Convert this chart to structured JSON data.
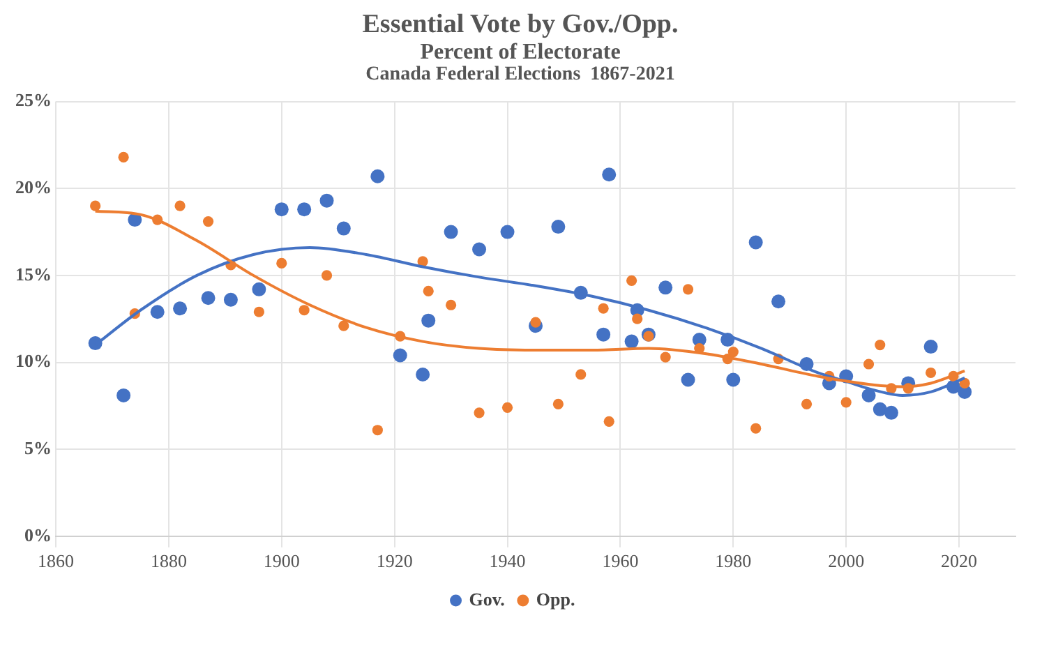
{
  "chart_data": {
    "type": "scatter",
    "title": "Essential Vote by Gov./Opp.",
    "subtitle": "Percent of Electorate",
    "annotations": [
      "Canada Federal Elections  1867-2021"
    ],
    "x": [
      1867,
      1872,
      1874,
      1878,
      1882,
      1887,
      1891,
      1896,
      1900,
      1904,
      1908,
      1911,
      1917,
      1921,
      1925,
      1926,
      1930,
      1935,
      1940,
      1945,
      1949,
      1953,
      1957,
      1958,
      1962,
      1963,
      1965,
      1968,
      1972,
      1974,
      1979,
      1980,
      1984,
      1988,
      1993,
      1997,
      2000,
      2004,
      2006,
      2008,
      2011,
      2015,
      2019,
      2021
    ],
    "series": [
      {
        "name": "Gov.",
        "color": "#4472c4",
        "values": [
          11.1,
          8.1,
          18.2,
          12.9,
          13.1,
          13.7,
          13.6,
          14.2,
          18.8,
          18.8,
          19.3,
          17.7,
          20.7,
          10.4,
          9.3,
          12.4,
          17.5,
          16.5,
          17.5,
          12.1,
          17.8,
          14.0,
          11.6,
          20.8,
          11.2,
          13.0,
          11.6,
          14.3,
          9.0,
          11.3,
          11.3,
          9.0,
          16.9,
          13.5,
          9.9,
          8.8,
          9.2,
          8.1,
          7.3,
          7.1,
          8.8,
          10.9,
          8.6,
          8.3
        ]
      },
      {
        "name": "Opp.",
        "color": "#ed7d31",
        "values": [
          19.0,
          21.8,
          12.8,
          18.2,
          19.0,
          18.1,
          15.6,
          12.9,
          15.7,
          13.0,
          15.0,
          12.1,
          6.1,
          11.5,
          15.8,
          14.1,
          13.3,
          7.1,
          7.4,
          12.3,
          7.6,
          9.3,
          13.1,
          6.6,
          14.7,
          12.5,
          11.5,
          10.3,
          14.2,
          10.8,
          10.2,
          10.6,
          6.2,
          10.2,
          7.6,
          9.2,
          7.7,
          9.9,
          11.0,
          8.5,
          8.5,
          9.4,
          9.2,
          8.8
        ]
      },
      {
        "type": "line",
        "marker": "none",
        "color": "#4472c4",
        "x": [
          1867,
          1875,
          1885,
          1895,
          1905,
          1915,
          1925,
          1935,
          1945,
          1955,
          1965,
          1975,
          1985,
          1995,
          2000,
          2005,
          2010,
          2015,
          2021
        ],
        "values": [
          11.0,
          13.0,
          15.0,
          16.2,
          16.6,
          16.2,
          15.5,
          14.9,
          14.4,
          13.8,
          13.0,
          12.0,
          10.8,
          9.4,
          8.9,
          8.4,
          8.1,
          8.3,
          9.1
        ]
      },
      {
        "type": "line",
        "marker": "none",
        "color": "#ed7d31",
        "x": [
          1867,
          1875,
          1885,
          1895,
          1905,
          1915,
          1925,
          1935,
          1945,
          1955,
          1965,
          1975,
          1985,
          1995,
          2005,
          2010,
          2015,
          2021
        ],
        "values": [
          18.7,
          18.5,
          17.0,
          15.0,
          13.3,
          12.0,
          11.2,
          10.8,
          10.7,
          10.7,
          10.8,
          10.5,
          9.9,
          9.2,
          8.7,
          8.6,
          8.8,
          9.5
        ]
      }
    ],
    "xlim": [
      1860,
      2030
    ],
    "xticks": [
      1860,
      1880,
      1900,
      1920,
      1940,
      1960,
      1980,
      2000,
      2020
    ],
    "ylim": [
      0,
      25
    ],
    "yticks": [
      {
        "value": 0,
        "label": "0%"
      },
      {
        "value": 5,
        "label": "5%"
      },
      {
        "value": 10,
        "label": "10%"
      },
      {
        "value": 15,
        "label": "15%"
      },
      {
        "value": 20,
        "label": "20%"
      },
      {
        "value": 25,
        "label": "25%"
      }
    ],
    "grid": true,
    "legend": "bottom",
    "marker": "circle"
  }
}
